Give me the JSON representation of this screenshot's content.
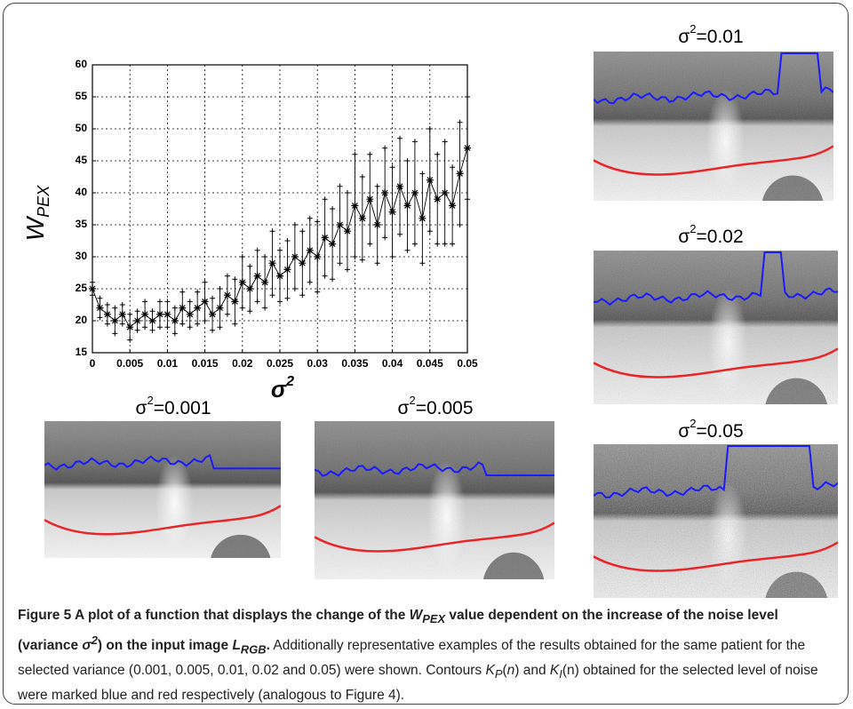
{
  "chart_data": {
    "type": "errorbar",
    "x_label": {
      "base": "σ",
      "sup": "2"
    },
    "y_label": {
      "base": "W",
      "sub": "PEX"
    },
    "x": [
      0,
      0.001,
      0.002,
      0.003,
      0.004,
      0.005,
      0.006,
      0.007,
      0.008,
      0.009,
      0.01,
      0.011,
      0.012,
      0.013,
      0.014,
      0.015,
      0.016,
      0.017,
      0.018,
      0.019,
      0.02,
      0.021,
      0.022,
      0.023,
      0.024,
      0.025,
      0.026,
      0.027,
      0.028,
      0.029,
      0.03,
      0.031,
      0.032,
      0.033,
      0.034,
      0.035,
      0.036,
      0.037,
      0.038,
      0.039,
      0.04,
      0.041,
      0.042,
      0.043,
      0.044,
      0.045,
      0.046,
      0.047,
      0.048,
      0.049,
      0.05
    ],
    "series": [
      {
        "color": "#000000",
        "values": [
          25,
          22,
          21,
          20,
          21,
          19,
          20,
          21,
          20,
          21,
          21,
          20,
          22,
          21,
          22,
          23,
          21,
          22,
          24,
          23,
          26,
          25,
          27,
          26,
          29,
          27,
          28,
          30,
          29,
          31,
          30,
          33,
          32,
          35,
          34,
          38,
          36,
          39,
          35,
          40,
          37,
          41,
          38,
          40,
          36,
          42,
          39,
          40,
          38,
          43,
          47
        ],
        "errors": [
          1,
          1.5,
          1.5,
          2,
          1.5,
          2,
          1.5,
          2,
          1.5,
          2,
          2,
          2,
          2.5,
          2,
          2.5,
          3,
          2.5,
          3,
          3,
          3.5,
          4,
          3.5,
          4,
          4,
          5,
          4,
          4.5,
          5,
          5,
          5,
          5.5,
          6,
          5.5,
          6,
          6,
          8,
          6.5,
          7,
          6,
          7,
          7,
          7.5,
          7,
          8,
          7,
          8,
          7,
          8,
          6,
          8,
          8
        ]
      }
    ],
    "xlim": [
      0,
      0.05
    ],
    "xticks": [
      0,
      0.005,
      0.01,
      0.015,
      0.02,
      0.025,
      0.03,
      0.035,
      0.04,
      0.045,
      0.05
    ],
    "ylim": [
      15,
      60
    ],
    "yticks": [
      15,
      20,
      25,
      30,
      35,
      40,
      45,
      50,
      55,
      60
    ],
    "grid": true
  },
  "panels": [
    {
      "sigma": "σ",
      "sup": "2",
      "rest": "=0.01"
    },
    {
      "sigma": "σ",
      "sup": "2",
      "rest": "=0.02"
    },
    {
      "sigma": "σ",
      "sup": "2",
      "rest": "=0.05"
    },
    {
      "sigma": "σ",
      "sup": "2",
      "rest": "=0.001"
    },
    {
      "sigma": "σ",
      "sup": "2",
      "rest": "=0.005"
    }
  ],
  "caption": {
    "runs": [
      "Figure 5 A plot of a function that displays the change of the ",
      "W",
      "PEX",
      " value dependent on the increase of the noise level (variance ",
      "σ",
      "2",
      ") on the input image ",
      "L",
      "RGB",
      ".",
      " Additionally representative examples of the results obtained for the same patient for the selected variance (0.001, 0.005, 0.01, 0.02 and 0.05) were shown. Contours ",
      "K",
      "P",
      "(",
      "n",
      ") and ",
      "K",
      "I",
      "(n) obtained for the selected level of noise were marked blue and red respectively (analogous to Figure 4)."
    ]
  }
}
